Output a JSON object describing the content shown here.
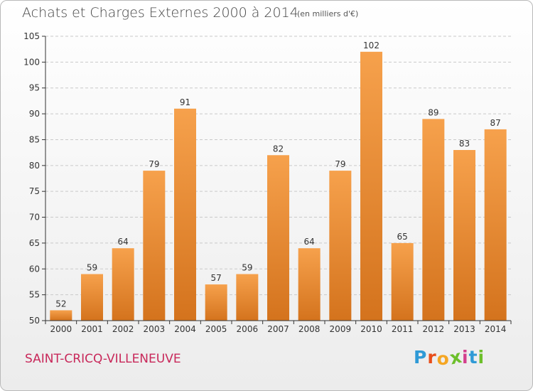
{
  "title": "Achats et Charges Externes 2000 à 2014",
  "subtitle": "(en milliers d'€)",
  "location": "SAINT-CRICQ-VILLENEUVE",
  "brand": {
    "letters": [
      "P",
      "r",
      "o",
      "x",
      "i",
      "t",
      "i"
    ],
    "colors": [
      "#2f9ad6",
      "#e84e1b",
      "#f5a623",
      "#6cbf2a",
      "#d43f8d",
      "#2f9ad6",
      "#6cbf2a"
    ]
  },
  "colors": {
    "bar_light": "#f6a14c",
    "bar_dark": "#d4731d",
    "grid": "#c9c9c9",
    "axis": "#333333",
    "text": "#333333"
  },
  "chart_data": {
    "type": "bar",
    "categories": [
      "2000",
      "2001",
      "2002",
      "2003",
      "2004",
      "2005",
      "2006",
      "2007",
      "2008",
      "2009",
      "2010",
      "2011",
      "2012",
      "2013",
      "2014"
    ],
    "values": [
      52,
      59,
      64,
      79,
      91,
      57,
      59,
      82,
      64,
      79,
      102,
      65,
      89,
      83,
      87
    ],
    "ylim": [
      50,
      105
    ],
    "yticks": [
      50,
      55,
      60,
      65,
      70,
      75,
      80,
      85,
      90,
      95,
      100,
      105
    ],
    "grid": true,
    "data_labels": true
  }
}
